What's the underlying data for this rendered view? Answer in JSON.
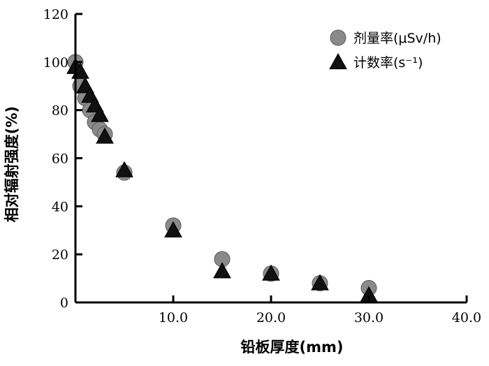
{
  "chart_data": {
    "type": "scatter",
    "xlabel": "铅板厚度(mm)",
    "ylabel": "相对辐射强度(%)",
    "xlim": [
      0,
      40
    ],
    "ylim": [
      0,
      120
    ],
    "xticks": [
      "10.0",
      "20.0",
      "30.0",
      "40.0"
    ],
    "yticks": [
      "0",
      "20",
      "40",
      "60",
      "80",
      "100",
      "120"
    ],
    "legend_position": "top-right",
    "series": [
      {
        "name": "剂量率(μSv/h)",
        "marker": "circle",
        "color": "#8a8a8a",
        "x": [
          0,
          0.5,
          1,
          1.5,
          2,
          2.5,
          3,
          5,
          10,
          15,
          20,
          25,
          30
        ],
        "y": [
          100,
          90,
          85,
          80,
          75,
          72,
          70,
          54,
          32,
          18,
          12,
          8,
          6
        ]
      },
      {
        "name": "计数率(s⁻¹)",
        "marker": "triangle",
        "color": "#111111",
        "x": [
          0,
          0.5,
          1,
          1.5,
          2,
          2.5,
          3,
          5,
          10,
          15,
          20,
          25,
          30
        ],
        "y": [
          98,
          96,
          90,
          86,
          82,
          78,
          69,
          55,
          30,
          13,
          12,
          8,
          3
        ]
      }
    ]
  }
}
